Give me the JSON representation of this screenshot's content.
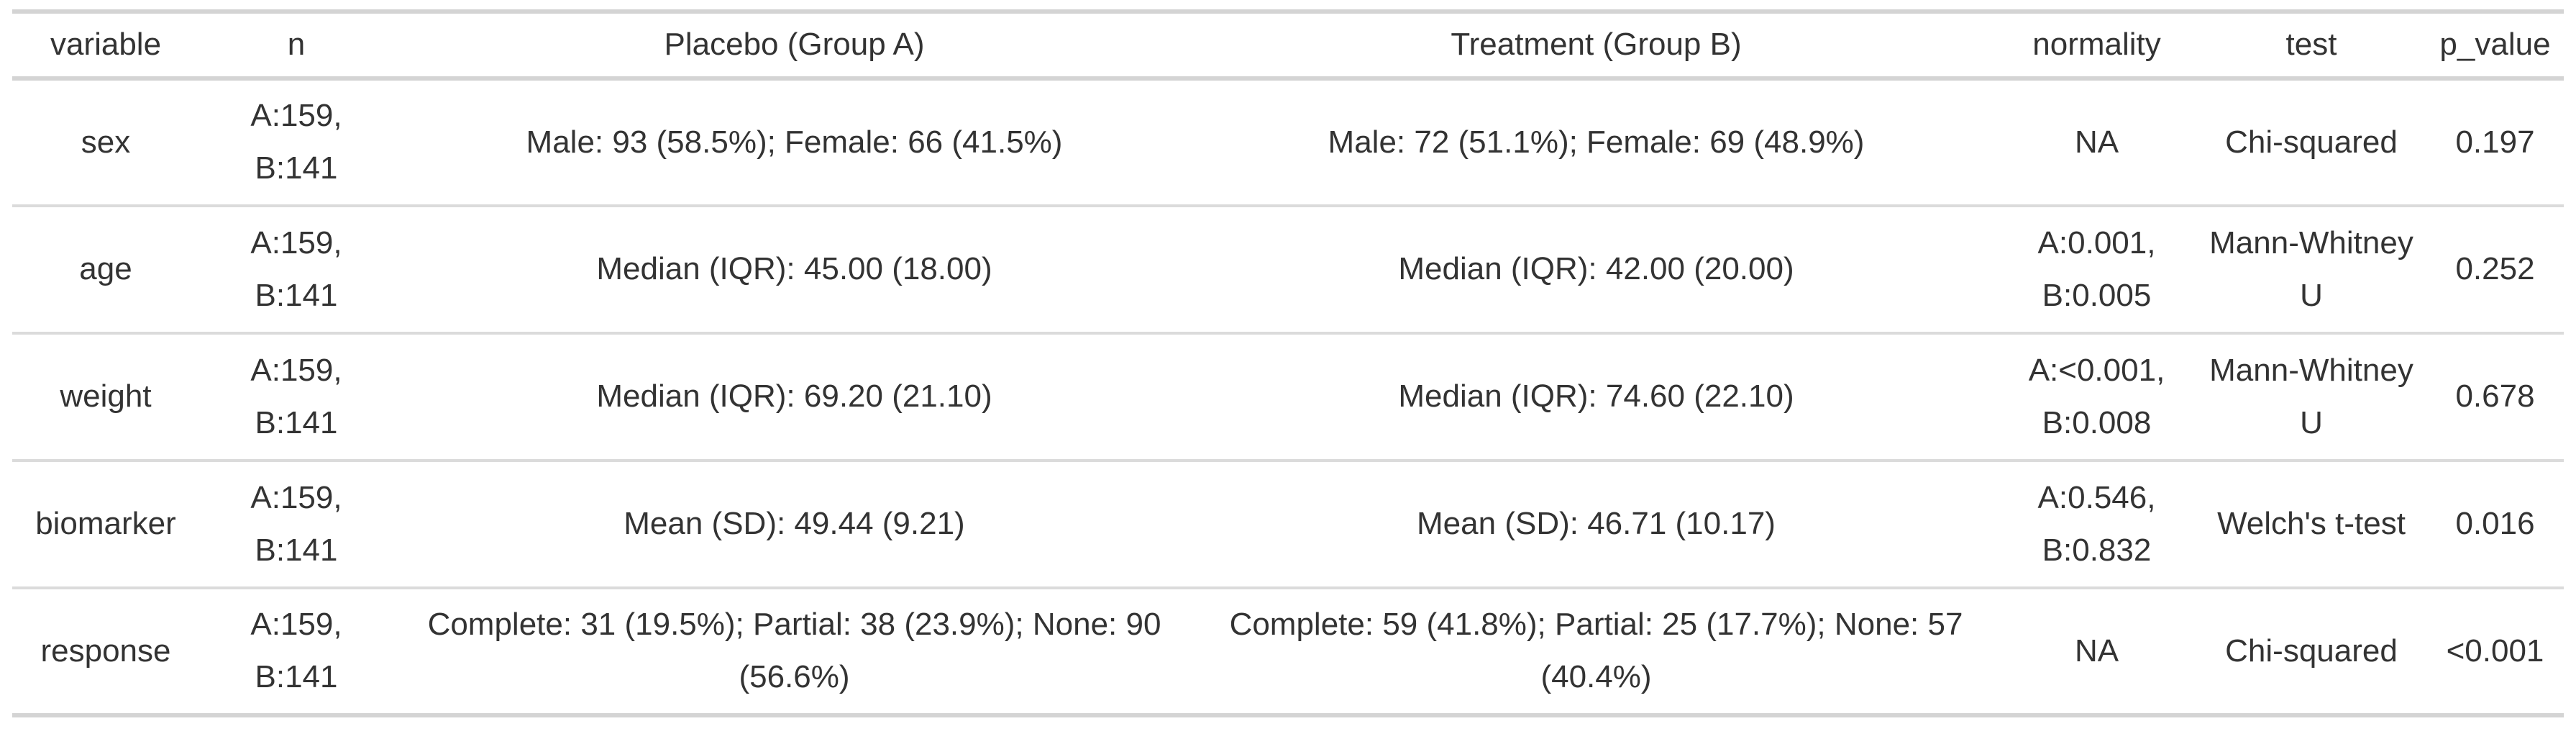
{
  "styles": {
    "background": "#ffffff",
    "text_color": "#333333",
    "rule_color_heavy": "#d4d4d4",
    "rule_color_light": "#dbdbdb"
  },
  "chart_data": {
    "type": "table",
    "title": "",
    "columns": [
      "variable",
      "n",
      "Placebo (Group A)",
      "Treatment (Group B)",
      "normality",
      "test",
      "p_value"
    ],
    "rows": [
      [
        "sex",
        "A:159, B:141",
        "Male: 93 (58.5%); Female: 66 (41.5%)",
        "Male: 72 (51.1%); Female: 69 (48.9%)",
        "NA",
        "Chi-squared",
        "0.197"
      ],
      [
        "age",
        "A:159, B:141",
        "Median (IQR): 45.00 (18.00)",
        "Median (IQR): 42.00 (20.00)",
        "A:0.001, B:0.005",
        "Mann-Whitney U",
        "0.252"
      ],
      [
        "weight",
        "A:159, B:141",
        "Median (IQR): 69.20 (21.10)",
        "Median (IQR): 74.60 (22.10)",
        "A:<0.001, B:0.008",
        "Mann-Whitney U",
        "0.678"
      ],
      [
        "biomarker",
        "A:159, B:141",
        "Mean (SD): 49.44 (9.21)",
        "Mean (SD): 46.71 (10.17)",
        "A:0.546, B:0.832",
        "Welch's t-test",
        "0.016"
      ],
      [
        "response",
        "A:159, B:141",
        "Complete: 31 (19.5%); Partial: 38 (23.9%); None: 90 (56.6%)",
        "Complete: 59 (41.8%); Partial: 25 (17.7%); None: 57 (40.4%)",
        "NA",
        "Chi-squared",
        "<0.001"
      ]
    ]
  }
}
